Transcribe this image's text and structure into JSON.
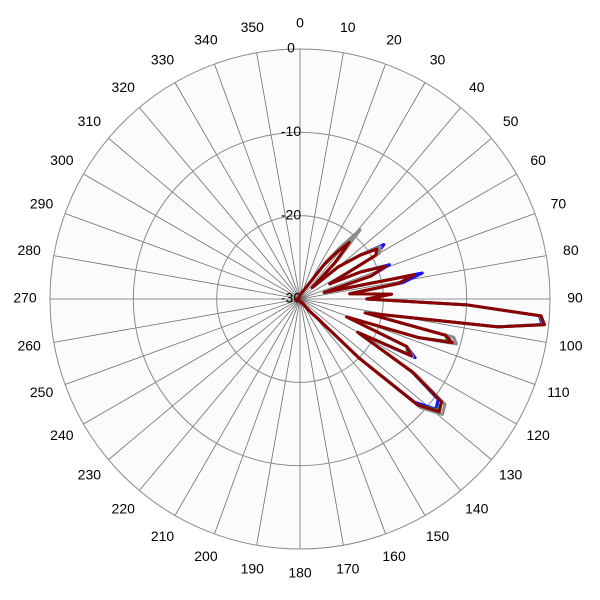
{
  "chart_data": {
    "type": "polar",
    "theta": [
      0,
      30,
      35,
      38,
      41,
      44,
      47,
      50,
      54,
      57,
      60,
      63,
      66,
      69,
      72,
      75,
      78,
      81,
      84,
      87,
      90,
      92,
      94,
      96,
      98,
      100,
      102,
      104,
      106,
      108,
      111,
      114,
      117,
      120,
      123,
      126,
      129,
      132,
      135,
      138,
      141,
      145,
      150,
      160,
      180,
      220,
      260,
      300,
      330
    ],
    "series": [
      {
        "color": "#1414ff",
        "values": [
          -29.6,
          -28,
          -25,
          -22.5,
          -19.5,
          -24,
          -28,
          -24,
          -21,
          -18,
          -19.5,
          -26,
          -22,
          -18.5,
          -21,
          -27,
          -15,
          -17.5,
          -24,
          -19,
          -22,
          -10,
          -1.2,
          -0.8,
          -6,
          -18,
          -22,
          -11,
          -10.5,
          -15,
          -24,
          -16,
          -14.5,
          -22,
          -14,
          -9.5,
          -9,
          -11.5,
          -20,
          -27,
          -28,
          -29,
          -29.5,
          -29.6,
          -29.8,
          -29.8,
          -29.6,
          -29.8,
          -29.8
        ]
      },
      {
        "color": "#2e8b2e",
        "values": [
          -29.6,
          -28,
          -25,
          -23,
          -20.5,
          -24,
          -28,
          -24,
          -21,
          -18.8,
          -19.5,
          -26,
          -22,
          -19,
          -21,
          -27,
          -16,
          -18,
          -24,
          -19,
          -22,
          -10,
          -1.1,
          -0.6,
          -6,
          -18,
          -22,
          -12,
          -11.5,
          -15,
          -24,
          -16,
          -15.5,
          -22,
          -14,
          -9,
          -8.8,
          -11,
          -20,
          -27,
          -28,
          -29,
          -29.5,
          -29.6,
          -29.8,
          -29.8,
          -29.6,
          -29.8,
          -29.8
        ]
      },
      {
        "color": "#8c8c8c",
        "values": [
          -29.6,
          -28,
          -24.5,
          -22,
          -19,
          -23.5,
          -28,
          -24,
          -21,
          -18.5,
          -19,
          -26,
          -22,
          -19,
          -21,
          -27,
          -16,
          -18,
          -24,
          -19,
          -22,
          -10,
          -1,
          -0.6,
          -6,
          -18,
          -22,
          -11,
          -10.5,
          -15,
          -24,
          -16,
          -14.8,
          -22,
          -13.5,
          -8.5,
          -8,
          -10.5,
          -20,
          -27,
          -28,
          -29,
          -29.5,
          -29.6,
          -29.8,
          -29.8,
          -29.6,
          -29.8,
          -29.8
        ]
      },
      {
        "color": "#8b0000",
        "values": [
          -29.5,
          -28,
          -25,
          -23,
          -21,
          -24,
          -28,
          -24,
          -21,
          -19,
          -19.5,
          -26,
          -22,
          -19,
          -21,
          -27,
          -16,
          -18,
          -24,
          -19,
          -22,
          -10,
          -1,
          -0.5,
          -6,
          -18,
          -22,
          -12,
          -11,
          -15,
          -24,
          -16,
          -15,
          -22,
          -14,
          -9,
          -8.5,
          -11,
          -20,
          -27,
          -28,
          -29,
          -29.5,
          -29.5,
          -29.8,
          -29.8,
          -29.5,
          -29.8,
          -29.8
        ]
      }
    ],
    "rlim": [
      -30,
      0
    ],
    "rticks": [
      -30,
      -20,
      -10,
      0
    ],
    "thetaticks": [
      0,
      10,
      20,
      30,
      40,
      50,
      60,
      70,
      80,
      90,
      100,
      110,
      120,
      130,
      140,
      150,
      160,
      170,
      180,
      190,
      200,
      210,
      220,
      230,
      240,
      250,
      260,
      270,
      280,
      290,
      300,
      310,
      320,
      330,
      340,
      350
    ],
    "grid": true
  }
}
